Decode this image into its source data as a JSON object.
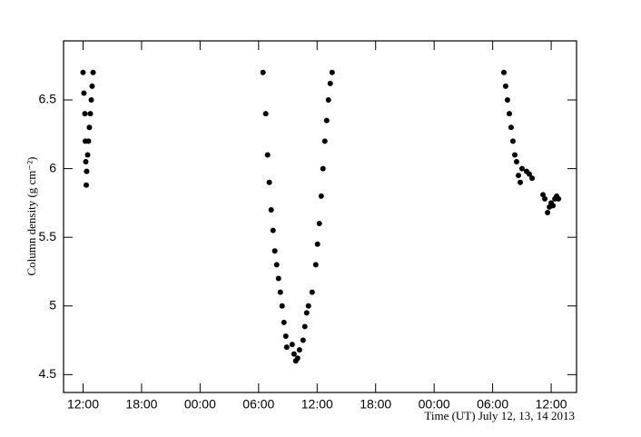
{
  "chart_data": {
    "type": "scatter",
    "x_label": "Time (UT) July 12, 13, 14 2013",
    "y_label": "Column density (g cm⁻²)",
    "color": "#000000",
    "x": [
      12.0,
      12.09,
      12.19,
      12.23,
      12.28,
      12.33,
      12.37,
      12.47,
      12.56,
      12.65,
      12.75,
      12.84,
      12.93,
      13.03,
      30.45,
      30.73,
      30.92,
      31.1,
      31.29,
      31.48,
      31.66,
      31.85,
      32.04,
      32.23,
      32.41,
      32.6,
      32.79,
      32.88,
      33.44,
      33.63,
      33.81,
      34.0,
      34.19,
      34.56,
      34.74,
      34.93,
      35.11,
      35.49,
      35.86,
      36.04,
      36.23,
      36.42,
      36.6,
      36.79,
      36.98,
      37.16,
      37.35,
      37.54,
      55.15,
      55.33,
      55.52,
      55.71,
      55.89,
      56.08,
      56.27,
      56.45,
      56.64,
      56.83,
      57.01,
      57.48,
      57.76,
      58.04,
      59.16,
      59.35,
      59.63,
      59.82,
      60.0,
      60.19,
      60.38,
      60.56,
      60.75
    ],
    "values": [
      6.7,
      6.55,
      6.4,
      6.2,
      6.05,
      5.88,
      5.98,
      6.1,
      6.2,
      6.3,
      6.4,
      6.5,
      6.6,
      6.7,
      6.7,
      6.4,
      6.1,
      5.9,
      5.7,
      5.55,
      5.4,
      5.3,
      5.2,
      5.1,
      5.0,
      4.88,
      4.78,
      4.7,
      4.72,
      4.65,
      4.6,
      4.62,
      4.68,
      4.75,
      4.85,
      4.95,
      5.0,
      5.1,
      5.3,
      5.45,
      5.6,
      5.8,
      6.0,
      6.2,
      6.35,
      6.5,
      6.62,
      6.7,
      6.7,
      6.6,
      6.5,
      6.4,
      6.3,
      6.2,
      6.1,
      6.05,
      5.95,
      5.9,
      6.0,
      5.98,
      5.96,
      5.93,
      5.81,
      5.78,
      5.68,
      5.72,
      5.75,
      5.73,
      5.78,
      5.8,
      5.78
    ],
    "xlim": [
      10,
      62.6
    ],
    "ylim": [
      4.37,
      6.93
    ],
    "xticks": [
      {
        "value": 12,
        "label": "12:00"
      },
      {
        "value": 18,
        "label": "18:00"
      },
      {
        "value": 24,
        "label": "00:00"
      },
      {
        "value": 30,
        "label": "06:00"
      },
      {
        "value": 36,
        "label": "12:00"
      },
      {
        "value": 42,
        "label": "18:00"
      },
      {
        "value": 48,
        "label": "00:00"
      },
      {
        "value": 54,
        "label": "06:00"
      },
      {
        "value": 60,
        "label": "12:00"
      }
    ],
    "yticks": [
      4.5,
      5,
      5.5,
      6,
      6.5
    ]
  }
}
